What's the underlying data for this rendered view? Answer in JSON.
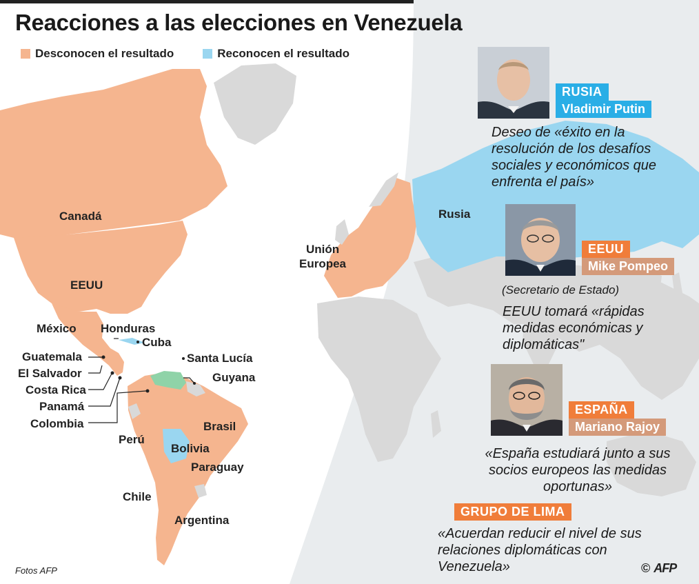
{
  "title": "Reacciones a las elecciones en Venezuela",
  "colors": {
    "desconocen": "#f5b58f",
    "reconocen": "#9ad6f0",
    "venezuela": "#8fd3a8",
    "land_other": "#d9d9d9",
    "ocean_right": "#e9ecee",
    "tag_blue": "#2aaee6",
    "tag_orange": "#f07d3a",
    "tag_tan": "#d49a7a"
  },
  "legend": {
    "desconocen": "Desconocen el resultado",
    "reconocen": "Reconocen el resultado"
  },
  "map_labels": {
    "canada": "Canadá",
    "eeuu": "EEUU",
    "mexico": "México",
    "honduras": "Honduras",
    "cuba": "Cuba",
    "santa_lucia": "Santa Lucía",
    "guatemala": "Guatemala",
    "el_salvador": "El Salvador",
    "costa_rica": "Costa Rica",
    "panama": "Panamá",
    "colombia": "Colombia",
    "guyana": "Guyana",
    "brasil": "Brasil",
    "peru": "Perú",
    "bolivia": "Bolivia",
    "paraguay": "Paraguay",
    "chile": "Chile",
    "argentina": "Argentina",
    "union_europea": "Unión\nEuropea",
    "rusia": "Rusia"
  },
  "reactions": [
    {
      "country": "RUSIA",
      "person": "Vladimir Putin",
      "role": "",
      "quote": "Deseo de «éxito en la resolución de los desafíos sociales y económicos que enfrenta el país»"
    },
    {
      "country": "EEUU",
      "person": "Mike Pompeo",
      "role": "(Secretario de Estado)",
      "quote": "EEUU tomará «rápidas medidas económicas y diplomáticas\""
    },
    {
      "country": "ESPAÑA",
      "person": "Mariano Rajoy",
      "role": "",
      "quote": "«España estudiará junto a sus socios europeos las medidas oportunas»"
    },
    {
      "country": "GRUPO DE LIMA",
      "person": "",
      "role": "",
      "quote": "«Acuerdan reducir el nivel de sus relaciones diplomáticas con Venezuela»"
    }
  ],
  "credit": "Fotos AFP",
  "copyright": "©",
  "afp_logo": "AFP"
}
